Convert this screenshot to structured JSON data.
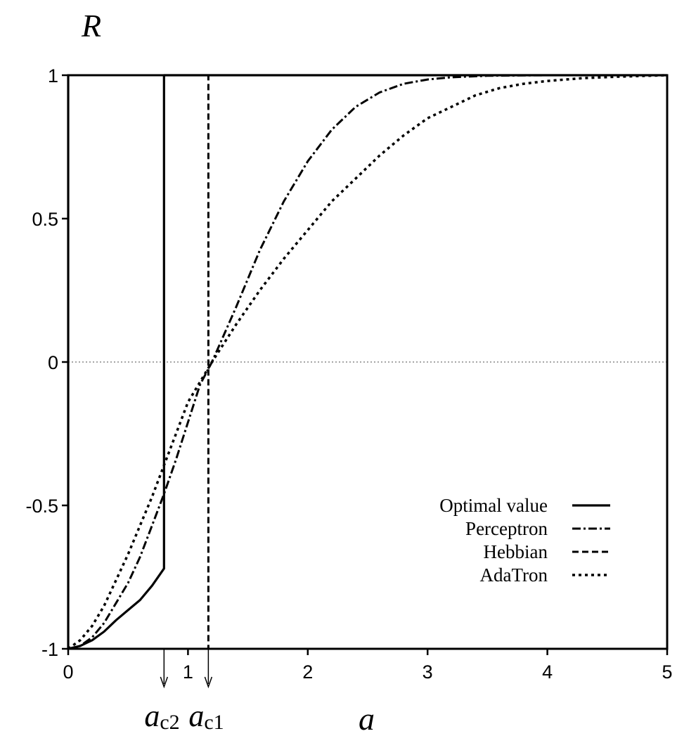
{
  "chart_data": {
    "type": "line",
    "title": "",
    "xlabel": "a",
    "ylabel": "R",
    "xlim": [
      0,
      5
    ],
    "ylim": [
      -1,
      1
    ],
    "xticks": [
      "0",
      "1",
      "2",
      "3",
      "4",
      "5"
    ],
    "yticks": [
      "-1",
      "-0.5",
      "0",
      "0.5",
      "1"
    ],
    "grid": false,
    "zero_line": true,
    "legend_position": "lower-right",
    "series": [
      {
        "name": "Optimal value",
        "style": "solid",
        "x": [
          0,
          0,
          0.1,
          0.2,
          0.3,
          0.4,
          0.5,
          0.6,
          0.7,
          0.8,
          0.8,
          5
        ],
        "y": [
          1,
          -1,
          -0.99,
          -0.97,
          -0.94,
          -0.9,
          -0.865,
          -0.83,
          -0.78,
          -0.72,
          1,
          1
        ]
      },
      {
        "name": "Perceptron",
        "style": "dashdot",
        "x": [
          0,
          0.1,
          0.2,
          0.3,
          0.4,
          0.5,
          0.6,
          0.7,
          0.8,
          0.9,
          1.0,
          1.1,
          1.2,
          1.4,
          1.6,
          1.8,
          2.0,
          2.2,
          2.4,
          2.6,
          2.8,
          3.0,
          3.2,
          3.5,
          4.0,
          5.0
        ],
        "y": [
          -1,
          -0.99,
          -0.96,
          -0.91,
          -0.84,
          -0.77,
          -0.68,
          -0.57,
          -0.46,
          -0.34,
          -0.21,
          -0.08,
          0.0,
          0.19,
          0.39,
          0.56,
          0.7,
          0.81,
          0.89,
          0.94,
          0.97,
          0.985,
          0.993,
          0.998,
          1.0,
          1.0
        ]
      },
      {
        "name": "Hebbian",
        "style": "dashed",
        "x": [
          0,
          1.17,
          1.17,
          5
        ],
        "y": [
          -1,
          -1,
          1,
          1
        ]
      },
      {
        "name": "AdaTron",
        "style": "dotted",
        "x": [
          0,
          0.1,
          0.2,
          0.3,
          0.4,
          0.5,
          0.6,
          0.7,
          0.8,
          0.9,
          1.0,
          1.2,
          1.4,
          1.6,
          1.8,
          2.0,
          2.2,
          2.4,
          2.6,
          2.8,
          3.0,
          3.2,
          3.4,
          3.6,
          3.8,
          4.0,
          4.3,
          4.6,
          5.0
        ],
        "y": [
          -1,
          -0.97,
          -0.92,
          -0.85,
          -0.76,
          -0.67,
          -0.57,
          -0.47,
          -0.36,
          -0.25,
          -0.14,
          0.0,
          0.13,
          0.25,
          0.36,
          0.46,
          0.56,
          0.64,
          0.72,
          0.79,
          0.85,
          0.89,
          0.93,
          0.955,
          0.97,
          0.98,
          0.99,
          0.995,
          1.0
        ]
      }
    ],
    "annotations": [
      {
        "label": "a",
        "subscript": "c2",
        "x": 0.8
      },
      {
        "label": "a",
        "subscript": "c1",
        "x": 1.17
      }
    ]
  }
}
